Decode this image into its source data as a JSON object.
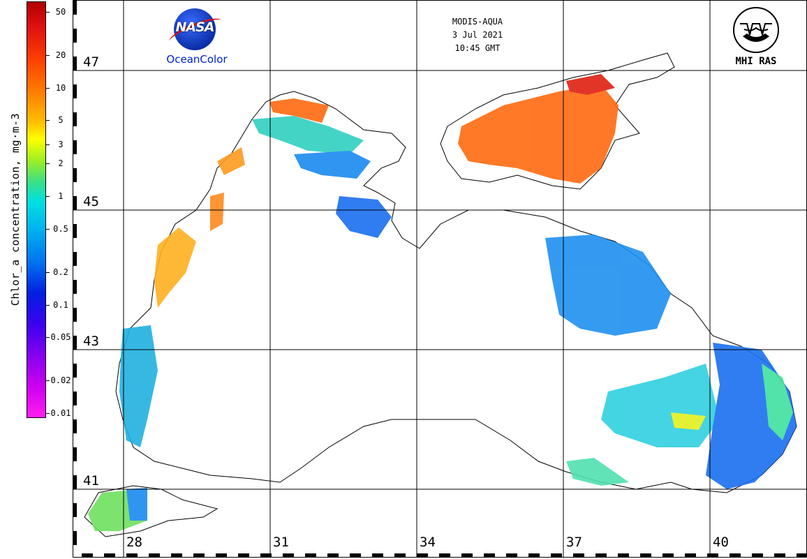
{
  "colorbar": {
    "title": "Chlor_a concentration, mg·m-3",
    "ticks": [
      {
        "label": "50",
        "value": 50
      },
      {
        "label": "20",
        "value": 20
      },
      {
        "label": "10",
        "value": 10
      },
      {
        "label": "5",
        "value": 5
      },
      {
        "label": "3",
        "value": 3
      },
      {
        "label": "2",
        "value": 2
      },
      {
        "label": "1",
        "value": 1
      },
      {
        "label": "0.5",
        "value": 0.5
      },
      {
        "label": "0.2",
        "value": 0.2
      },
      {
        "label": "0.1",
        "value": 0.1
      },
      {
        "label": "0.05",
        "value": 0.05
      },
      {
        "label": "0.02",
        "value": 0.02
      },
      {
        "label": "0.01",
        "value": 0.01
      }
    ],
    "scale": "log",
    "range": [
      0.01,
      60
    ]
  },
  "header": {
    "sensor": "MODIS-AQUA",
    "date": "3 Jul 2021",
    "time": "10:45 GMT"
  },
  "logos": {
    "nasa_word": "NASA",
    "nasa_caption": "OceanColor",
    "mhi_caption": "MHI RAS"
  },
  "grid": {
    "latitudes": [
      "47",
      "45",
      "43",
      "41"
    ],
    "longitudes": [
      "28",
      "31",
      "34",
      "37",
      "40"
    ]
  },
  "colors": {
    "land_border": "#000000",
    "background": "#ffffff",
    "high_chl": "#ff6010",
    "low_chl": "#1070f0"
  }
}
